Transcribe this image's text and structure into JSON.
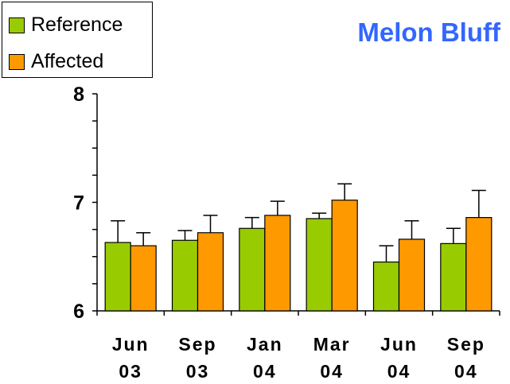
{
  "chart_data": {
    "type": "bar",
    "title": "Melon Bluff",
    "xlabel": "",
    "ylabel": "",
    "ylim": [
      6,
      8
    ],
    "yticks": [
      "6",
      "7",
      "8"
    ],
    "categories": [
      [
        "Jun",
        "03"
      ],
      [
        "Sep",
        "03"
      ],
      [
        "Jan",
        "04"
      ],
      [
        "Mar",
        "04"
      ],
      [
        "Jun",
        "04"
      ],
      [
        "Sep",
        "04"
      ]
    ],
    "series": [
      {
        "name": "Reference",
        "color": "#99cc00",
        "values": [
          6.63,
          6.65,
          6.76,
          6.85,
          6.45,
          6.62
        ],
        "errors": [
          0.2,
          0.09,
          0.1,
          0.05,
          0.15,
          0.14
        ]
      },
      {
        "name": "Affected",
        "color": "#ff9900",
        "values": [
          6.6,
          6.72,
          6.88,
          7.02,
          6.66,
          6.86
        ],
        "errors": [
          0.12,
          0.16,
          0.13,
          0.15,
          0.17,
          0.25
        ]
      }
    ],
    "legend_position": "top-left",
    "grid": false
  }
}
